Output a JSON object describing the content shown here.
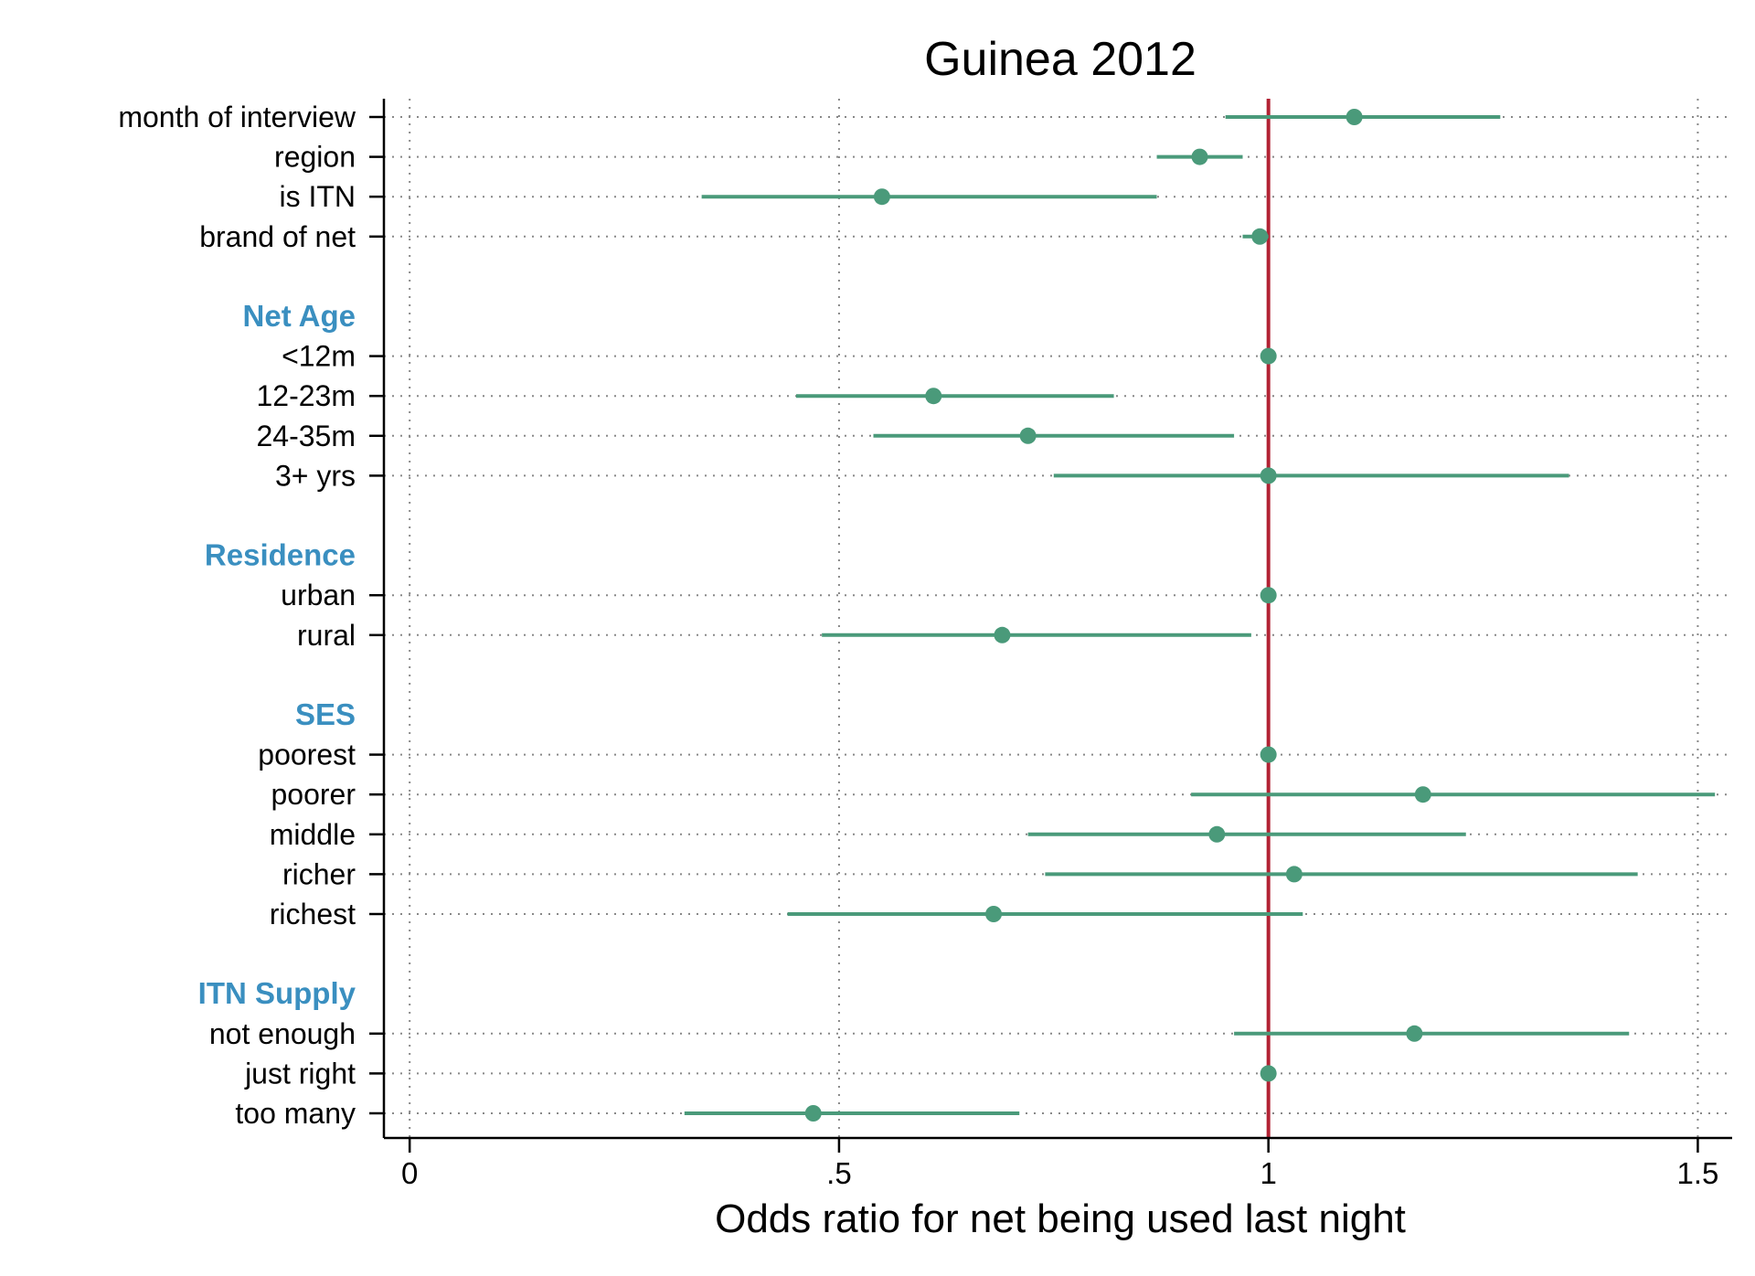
{
  "chart_data": {
    "type": "scatter",
    "title": "Guinea 2012",
    "xlabel": "Odds ratio for net being used last night",
    "xlim": [
      -0.03,
      1.54
    ],
    "xticks": [
      {
        "value": 0,
        "label": "0"
      },
      {
        "value": 0.5,
        "label": ".5"
      },
      {
        "value": 1,
        "label": "1"
      },
      {
        "value": 1.5,
        "label": "1.5"
      }
    ],
    "reference_line": {
      "x": 1,
      "color": "#b22234"
    },
    "grid": true,
    "colors": {
      "marker": "#4a9a7a",
      "group_label": "#3a8fc0",
      "reference": "#b22234"
    },
    "rows": [
      {
        "kind": "item",
        "label": "month of interview",
        "estimate": 1.1,
        "ci": [
          0.95,
          1.27
        ]
      },
      {
        "kind": "item",
        "label": "region",
        "estimate": 0.92,
        "ci": [
          0.87,
          0.97
        ]
      },
      {
        "kind": "item",
        "label": "is ITN",
        "estimate": 0.55,
        "ci": [
          0.34,
          0.87
        ]
      },
      {
        "kind": "item",
        "label": "brand of net",
        "estimate": 0.99,
        "ci": [
          0.97,
          1.0
        ]
      },
      {
        "kind": "spacer"
      },
      {
        "kind": "group",
        "label": "Net Age"
      },
      {
        "kind": "item",
        "label": "<12m",
        "estimate": 1.0,
        "ci": null
      },
      {
        "kind": "item",
        "label": "12-23m",
        "estimate": 0.61,
        "ci": [
          0.45,
          0.82
        ]
      },
      {
        "kind": "item",
        "label": "24-35m",
        "estimate": 0.72,
        "ci": [
          0.54,
          0.96
        ]
      },
      {
        "kind": "item",
        "label": "3+ yrs",
        "estimate": 1.0,
        "ci": [
          0.75,
          1.35
        ]
      },
      {
        "kind": "spacer"
      },
      {
        "kind": "group",
        "label": "Residence"
      },
      {
        "kind": "item",
        "label": "urban",
        "estimate": 1.0,
        "ci": null
      },
      {
        "kind": "item",
        "label": "rural",
        "estimate": 0.69,
        "ci": [
          0.48,
          0.98
        ]
      },
      {
        "kind": "spacer"
      },
      {
        "kind": "group",
        "label": "SES"
      },
      {
        "kind": "item",
        "label": "poorest",
        "estimate": 1.0,
        "ci": null
      },
      {
        "kind": "item",
        "label": "poorer",
        "estimate": 1.18,
        "ci": [
          0.91,
          1.52
        ]
      },
      {
        "kind": "item",
        "label": "middle",
        "estimate": 0.94,
        "ci": [
          0.72,
          1.23
        ]
      },
      {
        "kind": "item",
        "label": "richer",
        "estimate": 1.03,
        "ci": [
          0.74,
          1.43
        ]
      },
      {
        "kind": "item",
        "label": "richest",
        "estimate": 0.68,
        "ci": [
          0.44,
          1.04
        ]
      },
      {
        "kind": "spacer"
      },
      {
        "kind": "group",
        "label": "ITN Supply"
      },
      {
        "kind": "item",
        "label": "not enough",
        "estimate": 1.17,
        "ci": [
          0.96,
          1.42
        ]
      },
      {
        "kind": "item",
        "label": "just right",
        "estimate": 1.0,
        "ci": null
      },
      {
        "kind": "item",
        "label": "too many",
        "estimate": 0.47,
        "ci": [
          0.32,
          0.71
        ]
      }
    ]
  }
}
